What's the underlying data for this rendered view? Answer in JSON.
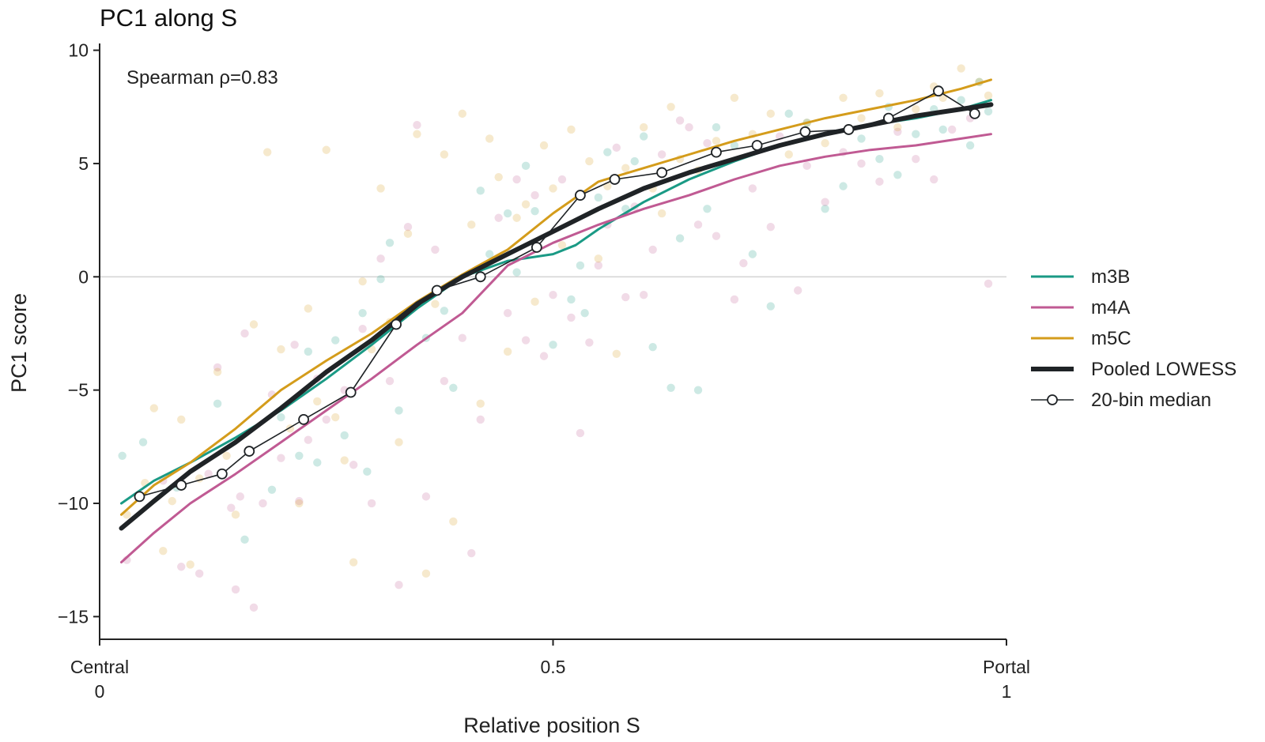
{
  "chart_data": {
    "type": "scatter",
    "title": "PC1 along S",
    "xlabel": "Relative position S",
    "ylabel": "PC1 score",
    "xlim": [
      0,
      1
    ],
    "ylim": [
      -16.0,
      10.3
    ],
    "grid": false,
    "zero_line": true,
    "legend_position": "center-right",
    "annotation": "Spearman ρ=0.83",
    "x_ticks": [
      {
        "value": 0,
        "label_top": "Central",
        "label_bottom": "0"
      },
      {
        "value": 0.5,
        "label_top": "0.5",
        "label_bottom": ""
      },
      {
        "value": 1,
        "label_top": "Portal",
        "label_bottom": "1"
      }
    ],
    "y_ticks": [
      {
        "value": 10,
        "label": "10"
      },
      {
        "value": 5,
        "label": "5"
      },
      {
        "value": 0,
        "label": "0"
      },
      {
        "value": -5,
        "label": "−5"
      },
      {
        "value": -10,
        "label": "−10"
      },
      {
        "value": -15,
        "label": "−15"
      }
    ],
    "colors": {
      "m3B": "#1a9a85",
      "m4A": "#c05a93",
      "m5C": "#d49c1b",
      "pooled": "#1f2326",
      "median": "#1f2326"
    },
    "series": [
      {
        "name": "m3B",
        "kind": "lowess",
        "x": [
          0.024,
          0.06,
          0.1,
          0.15,
          0.2,
          0.25,
          0.3,
          0.35,
          0.4,
          0.45,
          0.5,
          0.525,
          0.55,
          0.6,
          0.65,
          0.7,
          0.75,
          0.8,
          0.85,
          0.9,
          0.95,
          0.983
        ],
        "y": [
          -10.0,
          -9.0,
          -8.2,
          -7.1,
          -5.9,
          -4.5,
          -3.0,
          -1.4,
          0.0,
          0.7,
          1.0,
          1.4,
          2.1,
          3.3,
          4.3,
          5.1,
          5.8,
          6.3,
          6.7,
          7.0,
          7.4,
          7.8
        ]
      },
      {
        "name": "m4A",
        "kind": "lowess",
        "x": [
          0.024,
          0.06,
          0.1,
          0.15,
          0.2,
          0.25,
          0.3,
          0.35,
          0.4,
          0.45,
          0.5,
          0.55,
          0.6,
          0.65,
          0.7,
          0.75,
          0.8,
          0.85,
          0.9,
          0.95,
          0.983
        ],
        "y": [
          -12.6,
          -11.3,
          -10.0,
          -8.7,
          -7.3,
          -5.9,
          -4.5,
          -3.0,
          -1.6,
          0.5,
          1.5,
          2.3,
          3.0,
          3.6,
          4.3,
          4.9,
          5.3,
          5.6,
          5.8,
          6.1,
          6.3
        ]
      },
      {
        "name": "m5C",
        "kind": "lowess",
        "x": [
          0.024,
          0.06,
          0.1,
          0.15,
          0.2,
          0.25,
          0.3,
          0.35,
          0.4,
          0.45,
          0.5,
          0.55,
          0.6,
          0.65,
          0.7,
          0.75,
          0.8,
          0.85,
          0.9,
          0.95,
          0.983
        ],
        "y": [
          -10.5,
          -9.2,
          -8.2,
          -6.7,
          -5.0,
          -3.7,
          -2.5,
          -1.1,
          0.1,
          1.2,
          2.8,
          4.2,
          4.8,
          5.4,
          6.0,
          6.5,
          7.0,
          7.4,
          7.8,
          8.3,
          8.7
        ]
      },
      {
        "name": "Pooled LOWESS",
        "kind": "lowess-pooled",
        "x": [
          0.024,
          0.06,
          0.1,
          0.15,
          0.2,
          0.25,
          0.3,
          0.35,
          0.4,
          0.45,
          0.5,
          0.55,
          0.6,
          0.65,
          0.7,
          0.75,
          0.8,
          0.85,
          0.9,
          0.95,
          0.983
        ],
        "y": [
          -11.1,
          -9.9,
          -8.6,
          -7.3,
          -5.8,
          -4.2,
          -2.8,
          -1.2,
          0.0,
          1.0,
          2.0,
          3.0,
          3.9,
          4.6,
          5.2,
          5.8,
          6.3,
          6.7,
          7.1,
          7.4,
          7.6
        ]
      },
      {
        "name": "20-bin median",
        "kind": "median",
        "x": [
          0.044,
          0.09,
          0.135,
          0.165,
          0.225,
          0.277,
          0.327,
          0.372,
          0.42,
          0.482,
          0.53,
          0.568,
          0.62,
          0.68,
          0.725,
          0.778,
          0.826,
          0.87,
          0.925,
          0.965
        ],
        "y": [
          -9.7,
          -9.2,
          -8.7,
          -7.7,
          -6.3,
          -5.1,
          -2.1,
          -0.6,
          0.0,
          1.3,
          3.6,
          4.3,
          4.6,
          5.5,
          5.8,
          6.4,
          6.5,
          7.0,
          8.2,
          7.2
        ]
      }
    ],
    "scatter_points": {
      "m3B": [
        [
          0.025,
          -7.9
        ],
        [
          0.048,
          -7.3
        ],
        [
          0.085,
          -9.3
        ],
        [
          0.13,
          -5.6
        ],
        [
          0.16,
          -11.6
        ],
        [
          0.19,
          -9.4
        ],
        [
          0.2,
          -6.2
        ],
        [
          0.22,
          -7.9
        ],
        [
          0.23,
          -3.3
        ],
        [
          0.24,
          -8.2
        ],
        [
          0.26,
          -2.8
        ],
        [
          0.27,
          -7.0
        ],
        [
          0.29,
          -1.6
        ],
        [
          0.295,
          -8.6
        ],
        [
          0.31,
          -0.1
        ],
        [
          0.32,
          1.5
        ],
        [
          0.33,
          -5.9
        ],
        [
          0.36,
          -2.7
        ],
        [
          0.38,
          -1.5
        ],
        [
          0.39,
          -4.9
        ],
        [
          0.42,
          3.8
        ],
        [
          0.43,
          1.0
        ],
        [
          0.45,
          2.8
        ],
        [
          0.46,
          0.2
        ],
        [
          0.47,
          4.9
        ],
        [
          0.48,
          2.9
        ],
        [
          0.5,
          -3.0
        ],
        [
          0.52,
          -1.0
        ],
        [
          0.53,
          0.5
        ],
        [
          0.535,
          -1.6
        ],
        [
          0.55,
          3.5
        ],
        [
          0.56,
          5.5
        ],
        [
          0.57,
          4.3
        ],
        [
          0.58,
          3.0
        ],
        [
          0.59,
          5.1
        ],
        [
          0.6,
          6.2
        ],
        [
          0.61,
          -3.1
        ],
        [
          0.62,
          4.6
        ],
        [
          0.63,
          -4.9
        ],
        [
          0.64,
          1.7
        ],
        [
          0.66,
          -5.0
        ],
        [
          0.67,
          3.0
        ],
        [
          0.68,
          6.6
        ],
        [
          0.7,
          5.8
        ],
        [
          0.72,
          1.0
        ],
        [
          0.74,
          -1.3
        ],
        [
          0.76,
          7.2
        ],
        [
          0.78,
          6.8
        ],
        [
          0.8,
          3.0
        ],
        [
          0.82,
          4.0
        ],
        [
          0.84,
          6.1
        ],
        [
          0.86,
          5.2
        ],
        [
          0.87,
          7.5
        ],
        [
          0.88,
          4.5
        ],
        [
          0.9,
          6.3
        ],
        [
          0.92,
          7.4
        ],
        [
          0.93,
          6.5
        ],
        [
          0.95,
          7.8
        ],
        [
          0.96,
          5.8
        ],
        [
          0.97,
          8.6
        ],
        [
          0.98,
          7.3
        ]
      ],
      "m4A": [
        [
          0.03,
          -12.5
        ],
        [
          0.07,
          -9.0
        ],
        [
          0.09,
          -12.8
        ],
        [
          0.11,
          -13.1
        ],
        [
          0.12,
          -8.7
        ],
        [
          0.13,
          -4.0
        ],
        [
          0.145,
          -10.2
        ],
        [
          0.15,
          -13.8
        ],
        [
          0.155,
          -9.7
        ],
        [
          0.16,
          -2.5
        ],
        [
          0.17,
          -14.6
        ],
        [
          0.18,
          -10.0
        ],
        [
          0.19,
          -5.2
        ],
        [
          0.2,
          -8.0
        ],
        [
          0.215,
          -3.0
        ],
        [
          0.22,
          -9.9
        ],
        [
          0.23,
          -7.2
        ],
        [
          0.24,
          -4.5
        ],
        [
          0.25,
          -6.3
        ],
        [
          0.27,
          -5.0
        ],
        [
          0.28,
          -8.3
        ],
        [
          0.29,
          -2.3
        ],
        [
          0.3,
          -10.0
        ],
        [
          0.31,
          0.8
        ],
        [
          0.32,
          -4.6
        ],
        [
          0.33,
          -13.6
        ],
        [
          0.34,
          2.2
        ],
        [
          0.35,
          6.7
        ],
        [
          0.36,
          -9.7
        ],
        [
          0.37,
          1.2
        ],
        [
          0.38,
          -4.6
        ],
        [
          0.4,
          -2.7
        ],
        [
          0.41,
          -12.2
        ],
        [
          0.42,
          -6.3
        ],
        [
          0.44,
          2.6
        ],
        [
          0.45,
          -1.6
        ],
        [
          0.46,
          4.3
        ],
        [
          0.47,
          -2.8
        ],
        [
          0.48,
          3.6
        ],
        [
          0.49,
          -3.5
        ],
        [
          0.5,
          -0.8
        ],
        [
          0.51,
          4.3
        ],
        [
          0.52,
          -1.8
        ],
        [
          0.53,
          -6.9
        ],
        [
          0.54,
          -2.9
        ],
        [
          0.55,
          0.5
        ],
        [
          0.56,
          2.3
        ],
        [
          0.57,
          5.7
        ],
        [
          0.58,
          -0.9
        ],
        [
          0.59,
          3.1
        ],
        [
          0.6,
          -0.8
        ],
        [
          0.61,
          1.2
        ],
        [
          0.62,
          5.4
        ],
        [
          0.64,
          6.9
        ],
        [
          0.65,
          6.6
        ],
        [
          0.66,
          2.3
        ],
        [
          0.67,
          5.9
        ],
        [
          0.68,
          1.8
        ],
        [
          0.7,
          -1.0
        ],
        [
          0.71,
          0.6
        ],
        [
          0.72,
          3.9
        ],
        [
          0.74,
          2.2
        ],
        [
          0.75,
          6.2
        ],
        [
          0.77,
          -0.6
        ],
        [
          0.78,
          4.9
        ],
        [
          0.8,
          3.3
        ],
        [
          0.82,
          5.5
        ],
        [
          0.84,
          5.0
        ],
        [
          0.86,
          4.2
        ],
        [
          0.88,
          6.4
        ],
        [
          0.9,
          5.2
        ],
        [
          0.92,
          4.3
        ],
        [
          0.94,
          6.5
        ],
        [
          0.96,
          7.0
        ],
        [
          0.98,
          -0.3
        ]
      ],
      "m5C": [
        [
          0.03,
          -10.5
        ],
        [
          0.05,
          -9.1
        ],
        [
          0.06,
          -5.8
        ],
        [
          0.07,
          -12.1
        ],
        [
          0.08,
          -9.9
        ],
        [
          0.09,
          -6.3
        ],
        [
          0.1,
          -12.7
        ],
        [
          0.11,
          -8.9
        ],
        [
          0.13,
          -4.2
        ],
        [
          0.14,
          -7.9
        ],
        [
          0.15,
          -10.5
        ],
        [
          0.17,
          -2.1
        ],
        [
          0.185,
          5.5
        ],
        [
          0.2,
          -3.2
        ],
        [
          0.21,
          -6.7
        ],
        [
          0.22,
          -10.0
        ],
        [
          0.23,
          -1.4
        ],
        [
          0.24,
          -5.5
        ],
        [
          0.25,
          5.6
        ],
        [
          0.26,
          -6.2
        ],
        [
          0.27,
          -8.1
        ],
        [
          0.28,
          -12.6
        ],
        [
          0.29,
          -0.2
        ],
        [
          0.3,
          -3.2
        ],
        [
          0.31,
          3.9
        ],
        [
          0.32,
          -2.0
        ],
        [
          0.33,
          -7.3
        ],
        [
          0.34,
          1.9
        ],
        [
          0.35,
          6.3
        ],
        [
          0.36,
          -13.1
        ],
        [
          0.37,
          -1.2
        ],
        [
          0.38,
          5.4
        ],
        [
          0.39,
          -10.8
        ],
        [
          0.4,
          7.2
        ],
        [
          0.41,
          2.3
        ],
        [
          0.42,
          -5.6
        ],
        [
          0.43,
          6.1
        ],
        [
          0.44,
          4.4
        ],
        [
          0.45,
          -3.3
        ],
        [
          0.46,
          2.6
        ],
        [
          0.47,
          3.2
        ],
        [
          0.48,
          -1.1
        ],
        [
          0.49,
          5.8
        ],
        [
          0.5,
          3.9
        ],
        [
          0.51,
          1.4
        ],
        [
          0.52,
          6.5
        ],
        [
          0.53,
          3.6
        ],
        [
          0.54,
          5.1
        ],
        [
          0.55,
          0.8
        ],
        [
          0.56,
          4.0
        ],
        [
          0.57,
          -3.4
        ],
        [
          0.58,
          4.8
        ],
        [
          0.6,
          6.6
        ],
        [
          0.61,
          3.9
        ],
        [
          0.62,
          2.8
        ],
        [
          0.63,
          7.5
        ],
        [
          0.64,
          5.2
        ],
        [
          0.66,
          4.7
        ],
        [
          0.68,
          6.0
        ],
        [
          0.7,
          7.9
        ],
        [
          0.72,
          6.3
        ],
        [
          0.74,
          7.2
        ],
        [
          0.76,
          5.4
        ],
        [
          0.78,
          6.8
        ],
        [
          0.8,
          5.9
        ],
        [
          0.82,
          7.9
        ],
        [
          0.84,
          7.0
        ],
        [
          0.86,
          8.1
        ],
        [
          0.88,
          6.6
        ],
        [
          0.9,
          7.4
        ],
        [
          0.92,
          8.4
        ],
        [
          0.93,
          7.9
        ],
        [
          0.95,
          9.2
        ],
        [
          0.97,
          8.6
        ],
        [
          0.98,
          8.0
        ]
      ]
    },
    "legend": [
      {
        "label": "m3B",
        "style": "line",
        "color": "#1a9a85"
      },
      {
        "label": "m4A",
        "style": "line",
        "color": "#c05a93"
      },
      {
        "label": "m5C",
        "style": "line",
        "color": "#d49c1b"
      },
      {
        "label": "Pooled LOWESS",
        "style": "thick-line",
        "color": "#1f2326"
      },
      {
        "label": "20-bin median",
        "style": "line-marker",
        "color": "#1f2326"
      }
    ]
  }
}
